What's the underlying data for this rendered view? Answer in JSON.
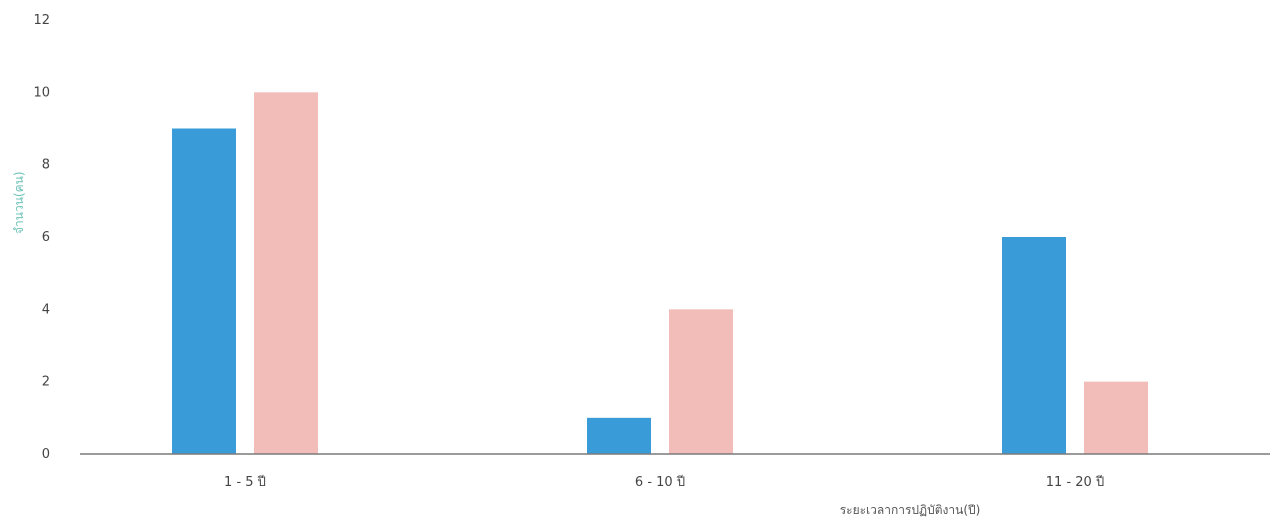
{
  "chart_data": {
    "type": "bar",
    "title": "",
    "xlabel": "ระยะเวลาการปฏิบัติงาน(ปี)",
    "ylabel": "จำนวน(คน)",
    "categories": [
      "1 - 5 ปี",
      "6 - 10 ปี",
      "11 - 20 ปี"
    ],
    "series": [
      {
        "values": [
          9,
          1,
          6
        ],
        "color": "#3a9bd9"
      },
      {
        "values": [
          10,
          4,
          2
        ],
        "color": "#f2bdb9"
      }
    ],
    "ylim": [
      0,
      12
    ],
    "yticks": [
      "0",
      "2",
      "4",
      "6",
      "8",
      "10",
      "12"
    ],
    "grid": false,
    "legend": "none",
    "colors": {
      "axis_label_y": "#6fc3b8",
      "tick_text": "#444444",
      "baseline": "#7a7a7a"
    }
  }
}
